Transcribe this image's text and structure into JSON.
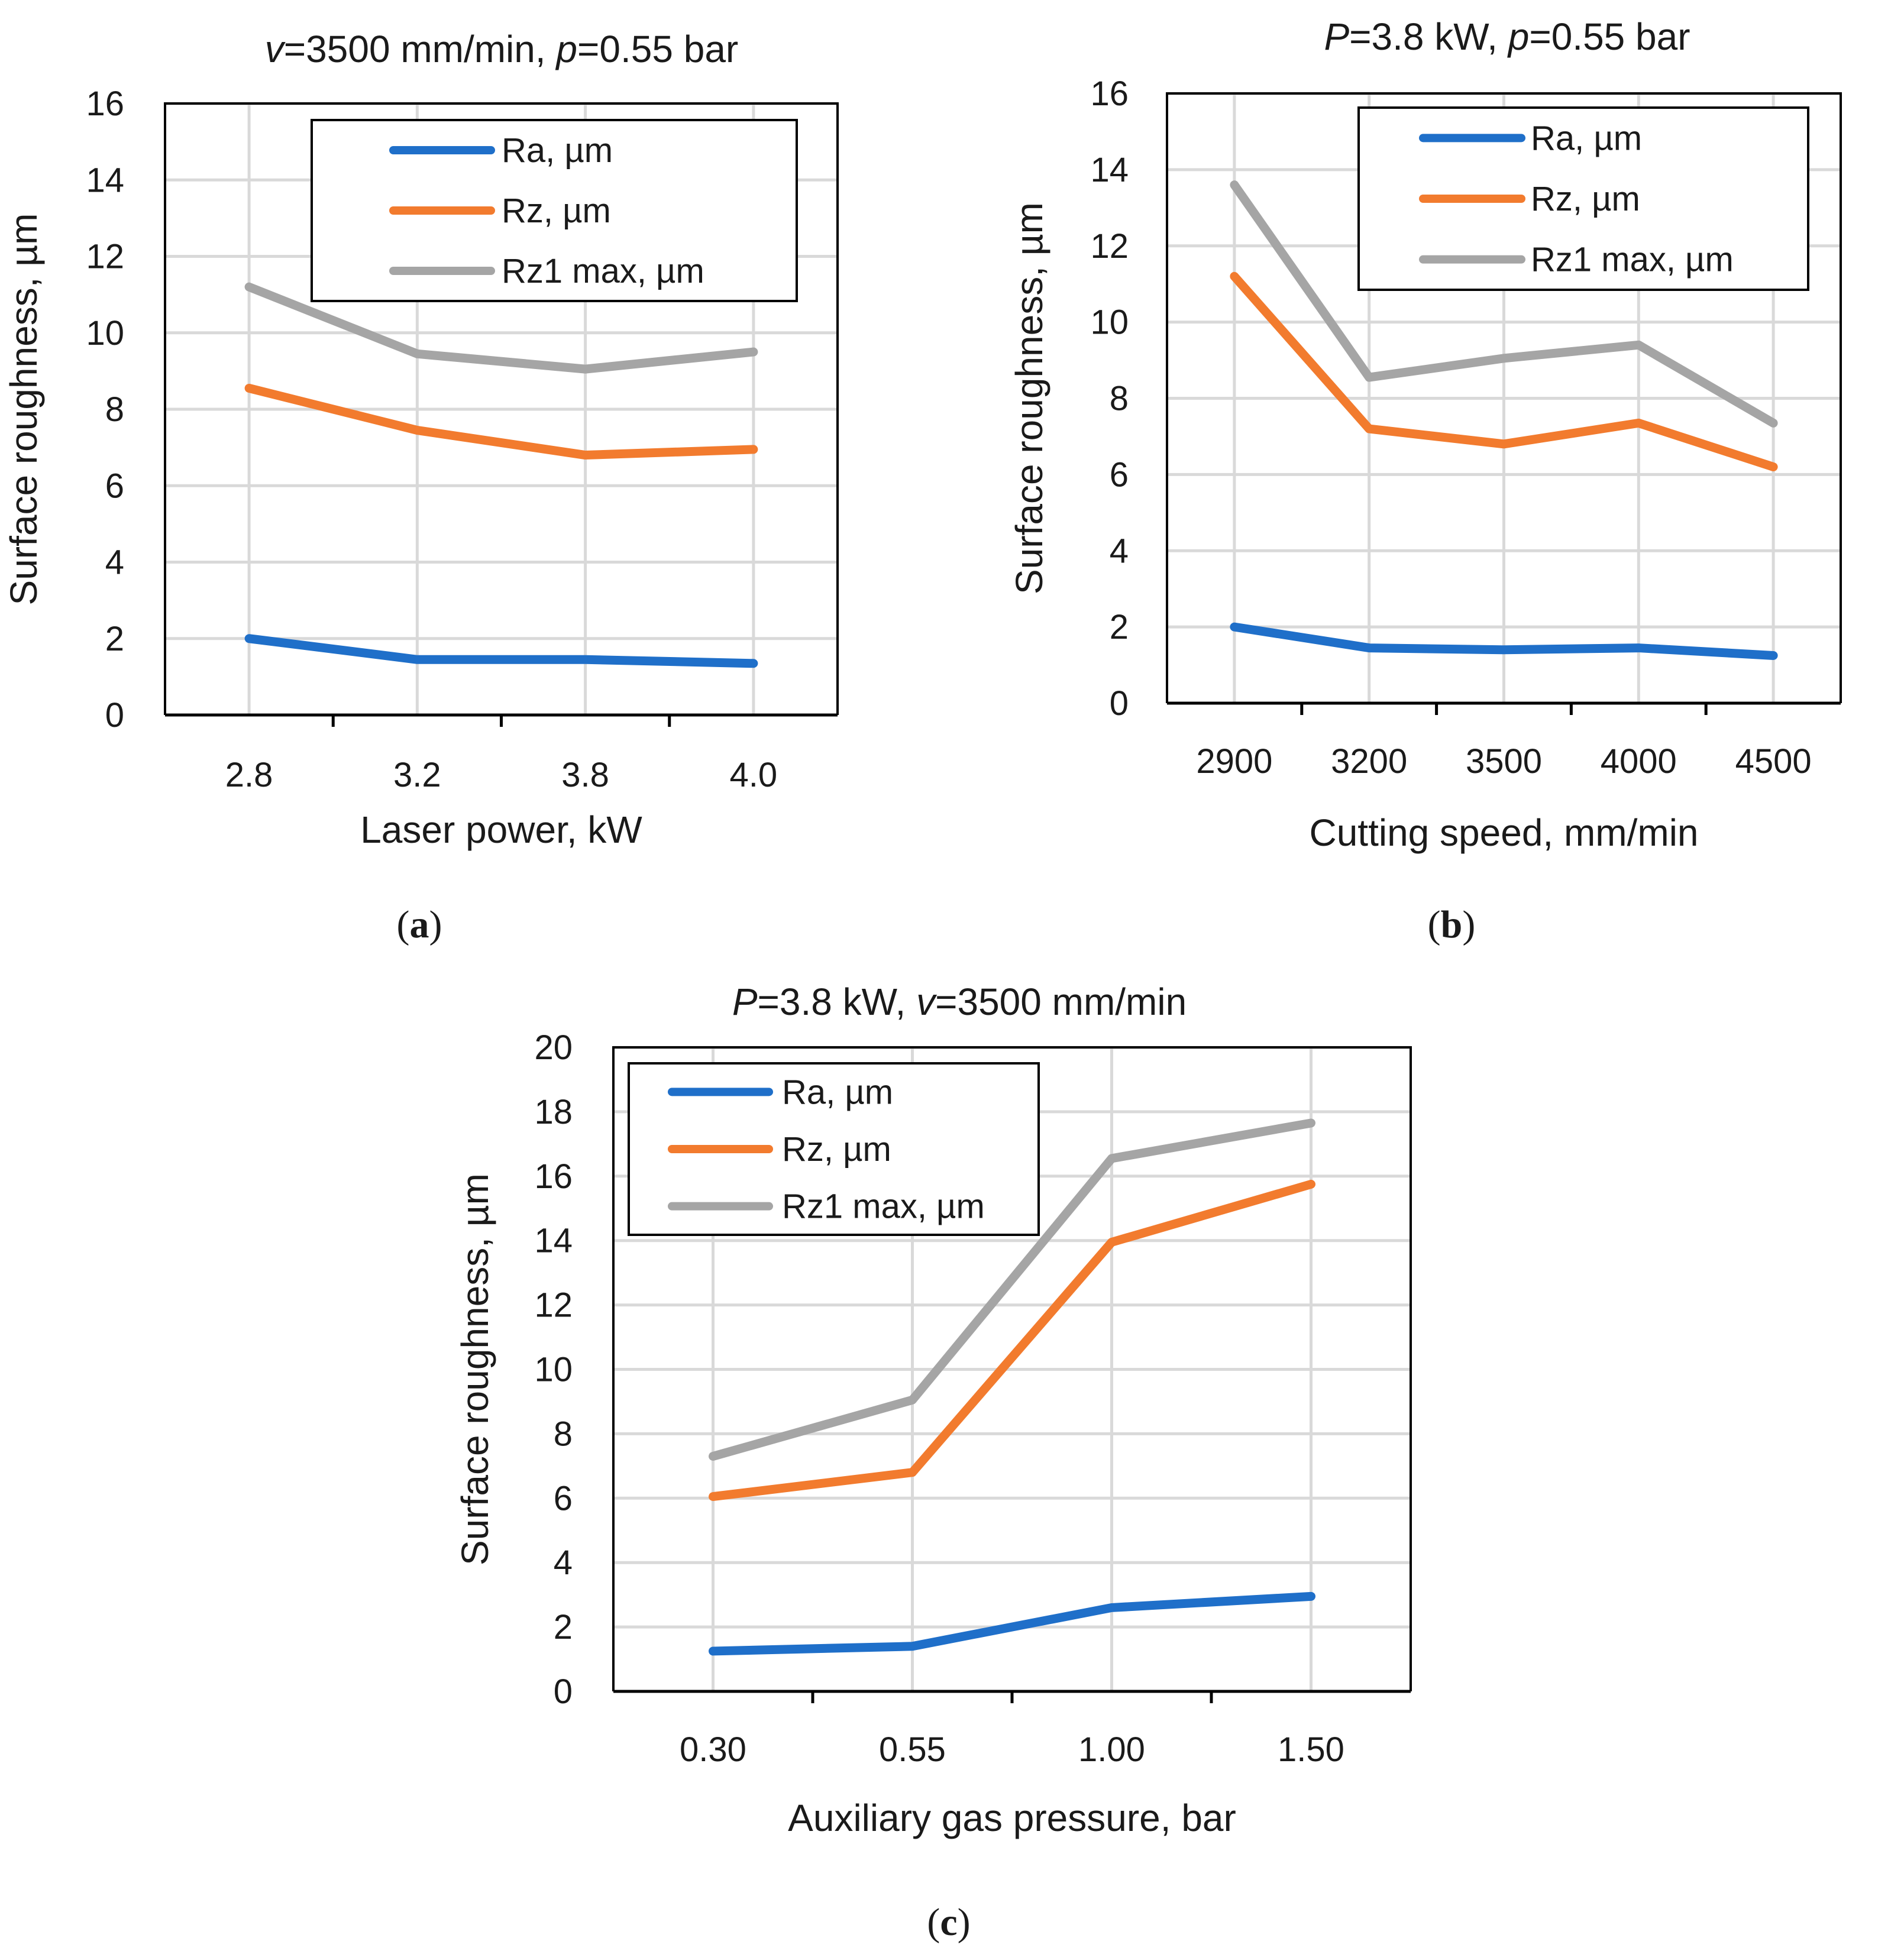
{
  "chart_data": [
    {
      "type": "line",
      "panel": "a",
      "title": {
        "var": "v",
        "value": "=3500 mm/min, ",
        "var2": "p",
        "value2": "=0.55 bar"
      },
      "xlabel": "Laser power, kW",
      "ylabel": "Surface roughness, µm",
      "categories": [
        "2.8",
        "3.2",
        "3.8",
        "4.0"
      ],
      "ylim": [
        0,
        16
      ],
      "yticks": [
        "0",
        "2",
        "4",
        "6",
        "8",
        "10",
        "12",
        "14",
        "16"
      ],
      "series": [
        {
          "name": "Ra, µm",
          "color": "#1f6fc9",
          "values": [
            2.0,
            1.45,
            1.45,
            1.35
          ]
        },
        {
          "name": "Rz, µm",
          "color": "#f27b2e",
          "values": [
            8.55,
            7.45,
            6.8,
            6.95
          ]
        },
        {
          "name": "Rz1 max, µm",
          "color": "#a5a5a5",
          "values": [
            11.2,
            9.45,
            9.05,
            9.5
          ]
        }
      ],
      "legend": "top-right",
      "caption": "a"
    },
    {
      "type": "line",
      "panel": "b",
      "title": {
        "var": "P",
        "value": "=3.8 kW, ",
        "var2": "p",
        "value2": "=0.55 bar"
      },
      "xlabel": "Cutting speed, mm/min",
      "ylabel": "Surface roughness, µm",
      "categories": [
        "2900",
        "3200",
        "3500",
        "4000",
        "4500"
      ],
      "ylim": [
        0,
        16
      ],
      "yticks": [
        "0",
        "2",
        "4",
        "6",
        "8",
        "10",
        "12",
        "14",
        "16"
      ],
      "series": [
        {
          "name": "Ra, µm",
          "color": "#1f6fc9",
          "values": [
            2.0,
            1.45,
            1.4,
            1.45,
            1.25
          ]
        },
        {
          "name": "Rz, µm",
          "color": "#f27b2e",
          "values": [
            11.2,
            7.2,
            6.8,
            7.35,
            6.2
          ]
        },
        {
          "name": "Rz1 max, µm",
          "color": "#a5a5a5",
          "values": [
            13.6,
            8.55,
            9.05,
            9.4,
            7.35
          ]
        }
      ],
      "legend": "top-right",
      "caption": "b"
    },
    {
      "type": "line",
      "panel": "c",
      "title": {
        "var": "P",
        "value": "=3.8 kW, ",
        "var2": "v",
        "value2": "=3500 mm/min"
      },
      "xlabel": "Auxiliary gas pressure, bar",
      "ylabel": "Surface roughness, µm",
      "categories": [
        "0.30",
        "0.55",
        "1.00",
        "1.50"
      ],
      "ylim": [
        0,
        20
      ],
      "yticks": [
        "0",
        "2",
        "4",
        "6",
        "8",
        "10",
        "12",
        "14",
        "16",
        "18",
        "20"
      ],
      "series": [
        {
          "name": "Ra, µm",
          "color": "#1f6fc9",
          "values": [
            1.25,
            1.4,
            2.6,
            2.95
          ]
        },
        {
          "name": "Rz, µm",
          "color": "#f27b2e",
          "values": [
            6.05,
            6.8,
            13.95,
            15.75
          ]
        },
        {
          "name": "Rz1 max, µm",
          "color": "#a5a5a5",
          "values": [
            7.3,
            9.05,
            16.55,
            17.65
          ]
        }
      ],
      "legend": "top-left",
      "caption": "c"
    }
  ]
}
